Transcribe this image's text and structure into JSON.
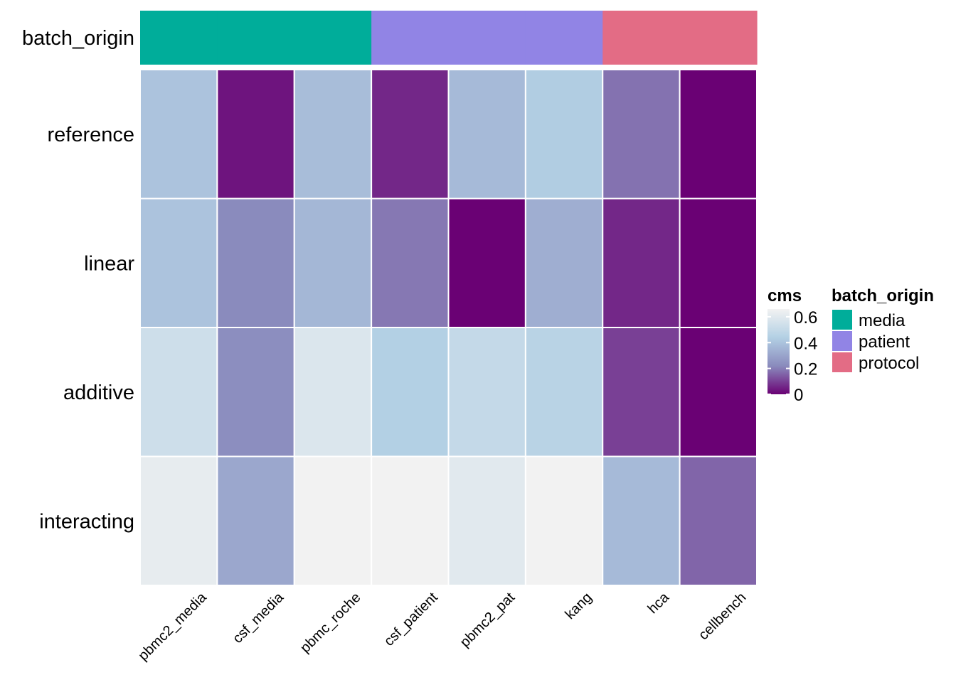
{
  "chart_data": {
    "type": "heatmap",
    "x": [
      "pbmc2_media",
      "csf_media",
      "pbmc_roche",
      "csf_patient",
      "pbmc2_pat",
      "kang",
      "hca",
      "cellbench"
    ],
    "y": [
      "reference",
      "linear",
      "additive",
      "interacting"
    ],
    "values": [
      [
        0.4,
        0.03,
        0.38,
        0.06,
        0.37,
        0.43,
        0.18,
        0.0
      ],
      [
        0.4,
        0.22,
        0.36,
        0.19,
        0.0,
        0.33,
        0.06,
        0.0
      ],
      [
        0.53,
        0.23,
        0.58,
        0.44,
        0.5,
        0.46,
        0.1,
        0.0
      ],
      [
        0.62,
        0.31,
        0.66,
        0.66,
        0.6,
        0.66,
        0.37,
        0.16
      ]
    ],
    "fill_legend": {
      "title": "cms",
      "ticks": [
        "0.6",
        "0.4",
        "0.2",
        "0"
      ],
      "range": [
        0,
        0.66
      ],
      "colors": [
        "#6a0174",
        "#8a8bbd",
        "#b3d0e4",
        "#f2f2f2"
      ]
    },
    "annotation": {
      "name": "batch_origin",
      "values": [
        "media",
        "media",
        "media",
        "patient",
        "patient",
        "patient",
        "protocol",
        "protocol"
      ],
      "legend": [
        {
          "label": "media",
          "color": "#00ad9a"
        },
        {
          "label": "patient",
          "color": "#9184e5"
        },
        {
          "label": "protocol",
          "color": "#e36c85"
        }
      ]
    }
  }
}
